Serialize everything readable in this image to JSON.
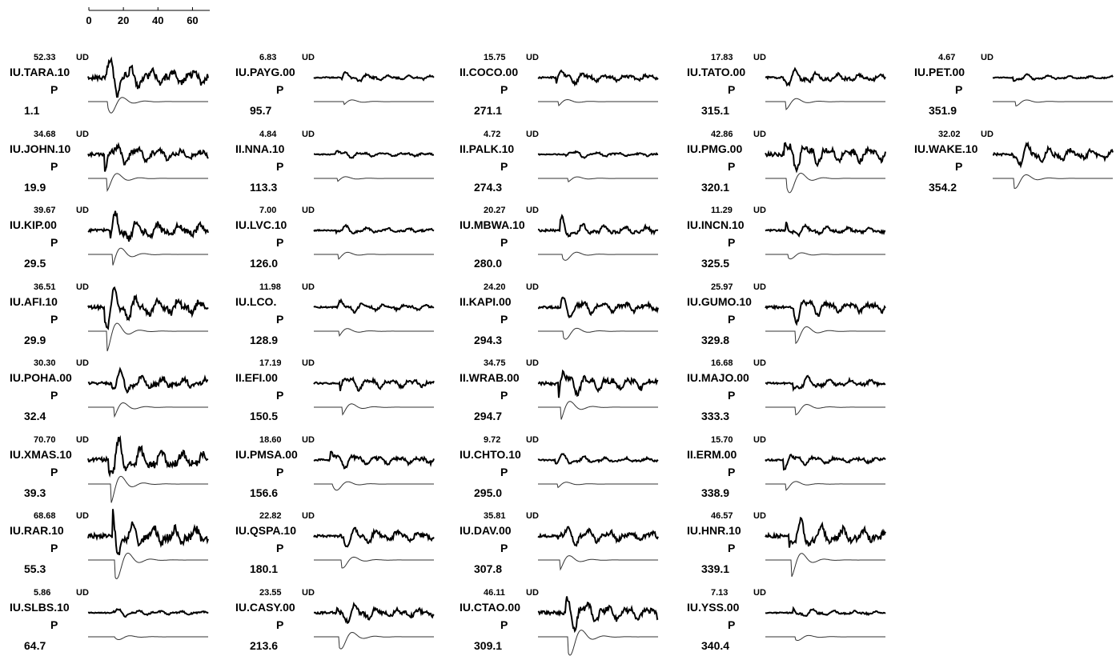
{
  "time_axis": {
    "ticks": [
      "0",
      "20",
      "40",
      "60"
    ]
  },
  "chart_data": {
    "type": "line",
    "xlabel": "",
    "ylabel": "",
    "xlim": [
      0,
      70
    ],
    "columns": [
      [
        {
          "station": "IU.TARA.10",
          "amp": "52.33",
          "comp": "UD",
          "phase": "P",
          "az": "1.1",
          "obs_level": 0.85,
          "syn_level": 0.6
        },
        {
          "station": "IU.JOHN.10",
          "amp": "34.68",
          "comp": "UD",
          "phase": "P",
          "az": "19.9",
          "obs_level": 0.6,
          "syn_level": 0.45
        },
        {
          "station": "IU.KIP.00",
          "amp": "39.67",
          "comp": "UD",
          "phase": "P",
          "az": "29.5",
          "obs_level": 0.7,
          "syn_level": 0.5
        },
        {
          "station": "IU.AFI.10",
          "amp": "36.51",
          "comp": "UD",
          "phase": "P",
          "az": "29.9",
          "obs_level": 0.85,
          "syn_level": 0.8
        },
        {
          "station": "IU.POHA.00",
          "amp": "30.30",
          "comp": "UD",
          "phase": "P",
          "az": "32.4",
          "obs_level": 0.55,
          "syn_level": 0.35
        },
        {
          "station": "IU.XMAS.10",
          "amp": "70.70",
          "comp": "UD",
          "phase": "P",
          "az": "39.3",
          "obs_level": 1.0,
          "syn_level": 0.75
        },
        {
          "station": "IU.RAR.10",
          "amp": "68.68",
          "comp": "UD",
          "phase": "P",
          "az": "55.3",
          "obs_level": 1.0,
          "syn_level": 0.9
        },
        {
          "station": "IU.SLBS.10",
          "amp": "5.86",
          "comp": "UD",
          "phase": "P",
          "az": "64.7",
          "obs_level": 0.1,
          "syn_level": 0.08
        }
      ],
      [
        {
          "station": "IU.PAYG.00",
          "amp": "6.83",
          "comp": "UD",
          "phase": "P",
          "az": "95.7",
          "obs_level": 0.15,
          "syn_level": 0.06
        },
        {
          "station": "II.NNA.10",
          "amp": "4.84",
          "comp": "UD",
          "phase": "P",
          "az": "113.3",
          "obs_level": 0.1,
          "syn_level": 0.06
        },
        {
          "station": "IU.LVC.10",
          "amp": "7.00",
          "comp": "UD",
          "phase": "P",
          "az": "126.0",
          "obs_level": 0.15,
          "syn_level": 0.12
        },
        {
          "station": "IU.LCO.",
          "amp": "11.98",
          "comp": "UD",
          "phase": "P",
          "az": "128.9",
          "obs_level": 0.22,
          "syn_level": 0.15
        },
        {
          "station": "II.EFI.00",
          "amp": "17.19",
          "comp": "UD",
          "phase": "P",
          "az": "150.5",
          "obs_level": 0.35,
          "syn_level": 0.25
        },
        {
          "station": "IU.PMSA.00",
          "amp": "18.60",
          "comp": "UD",
          "phase": "P",
          "az": "156.6",
          "obs_level": 0.35,
          "syn_level": 0.3
        },
        {
          "station": "IU.QSPA.10",
          "amp": "22.82",
          "comp": "UD",
          "phase": "P",
          "az": "180.1",
          "obs_level": 0.5,
          "syn_level": 0.3
        },
        {
          "station": "IU.CASY.00",
          "amp": "23.55",
          "comp": "UD",
          "phase": "P",
          "az": "213.6",
          "obs_level": 0.45,
          "syn_level": 0.55
        }
      ],
      [
        {
          "station": "II.COCO.00",
          "amp": "15.75",
          "comp": "UD",
          "phase": "P",
          "az": "271.1",
          "obs_level": 0.3,
          "syn_level": 0.1
        },
        {
          "station": "II.PALK.10",
          "amp": "4.72",
          "comp": "UD",
          "phase": "P",
          "az": "274.3",
          "obs_level": 0.1,
          "syn_level": 0.06
        },
        {
          "station": "IU.MBWA.10",
          "amp": "20.27",
          "comp": "UD",
          "phase": "P",
          "az": "280.0",
          "obs_level": 0.4,
          "syn_level": 0.25
        },
        {
          "station": "II.KAPI.00",
          "amp": "24.20",
          "comp": "UD",
          "phase": "P",
          "az": "294.3",
          "obs_level": 0.45,
          "syn_level": 0.35
        },
        {
          "station": "II.WRAB.00",
          "amp": "34.75",
          "comp": "UD",
          "phase": "P",
          "az": "294.7",
          "obs_level": 0.65,
          "syn_level": 0.5
        },
        {
          "station": "IU.CHTO.10",
          "amp": "9.72",
          "comp": "UD",
          "phase": "P",
          "az": "295.0",
          "obs_level": 0.18,
          "syn_level": 0.08
        },
        {
          "station": "IU.DAV.00",
          "amp": "35.81",
          "comp": "UD",
          "phase": "P",
          "az": "307.8",
          "obs_level": 0.5,
          "syn_level": 0.35
        },
        {
          "station": "IU.CTAO.00",
          "amp": "46.11",
          "comp": "UD",
          "phase": "P",
          "az": "309.1",
          "obs_level": 0.75,
          "syn_level": 0.9
        }
      ],
      [
        {
          "station": "IU.TATO.00",
          "amp": "17.83",
          "comp": "UD",
          "phase": "P",
          "az": "315.1",
          "obs_level": 0.35,
          "syn_level": 0.25
        },
        {
          "station": "IU.PMG.00",
          "amp": "42.86",
          "comp": "UD",
          "phase": "P",
          "az": "320.1",
          "obs_level": 0.8,
          "syn_level": 0.75
        },
        {
          "station": "IU.INCN.10",
          "amp": "11.29",
          "comp": "UD",
          "phase": "P",
          "az": "325.5",
          "obs_level": 0.25,
          "syn_level": 0.15
        },
        {
          "station": "IU.GUMO.10",
          "amp": "25.97",
          "comp": "UD",
          "phase": "P",
          "az": "329.8",
          "obs_level": 0.5,
          "syn_level": 0.45
        },
        {
          "station": "IU.MAJO.00",
          "amp": "16.68",
          "comp": "UD",
          "phase": "P",
          "az": "333.3",
          "obs_level": 0.3,
          "syn_level": 0.25
        },
        {
          "station": "II.ERM.00",
          "amp": "15.70",
          "comp": "UD",
          "phase": "P",
          "az": "338.9",
          "obs_level": 0.25,
          "syn_level": 0.18
        },
        {
          "station": "IU.HNR.10",
          "amp": "46.57",
          "comp": "UD",
          "phase": "P",
          "az": "339.1",
          "obs_level": 0.8,
          "syn_level": 0.65
        },
        {
          "station": "IU.YSS.00",
          "amp": "7.13",
          "comp": "UD",
          "phase": "P",
          "az": "340.4",
          "obs_level": 0.12,
          "syn_level": 0.1
        }
      ],
      [
        {
          "station": "IU.PET.00",
          "amp": "4.67",
          "comp": "UD",
          "phase": "P",
          "az": "351.9",
          "obs_level": 0.08,
          "syn_level": 0.1
        },
        {
          "station": "IU.WAKE.10",
          "amp": "32.02",
          "comp": "UD",
          "phase": "P",
          "az": "354.2",
          "obs_level": 0.55,
          "syn_level": 0.4
        }
      ]
    ]
  }
}
